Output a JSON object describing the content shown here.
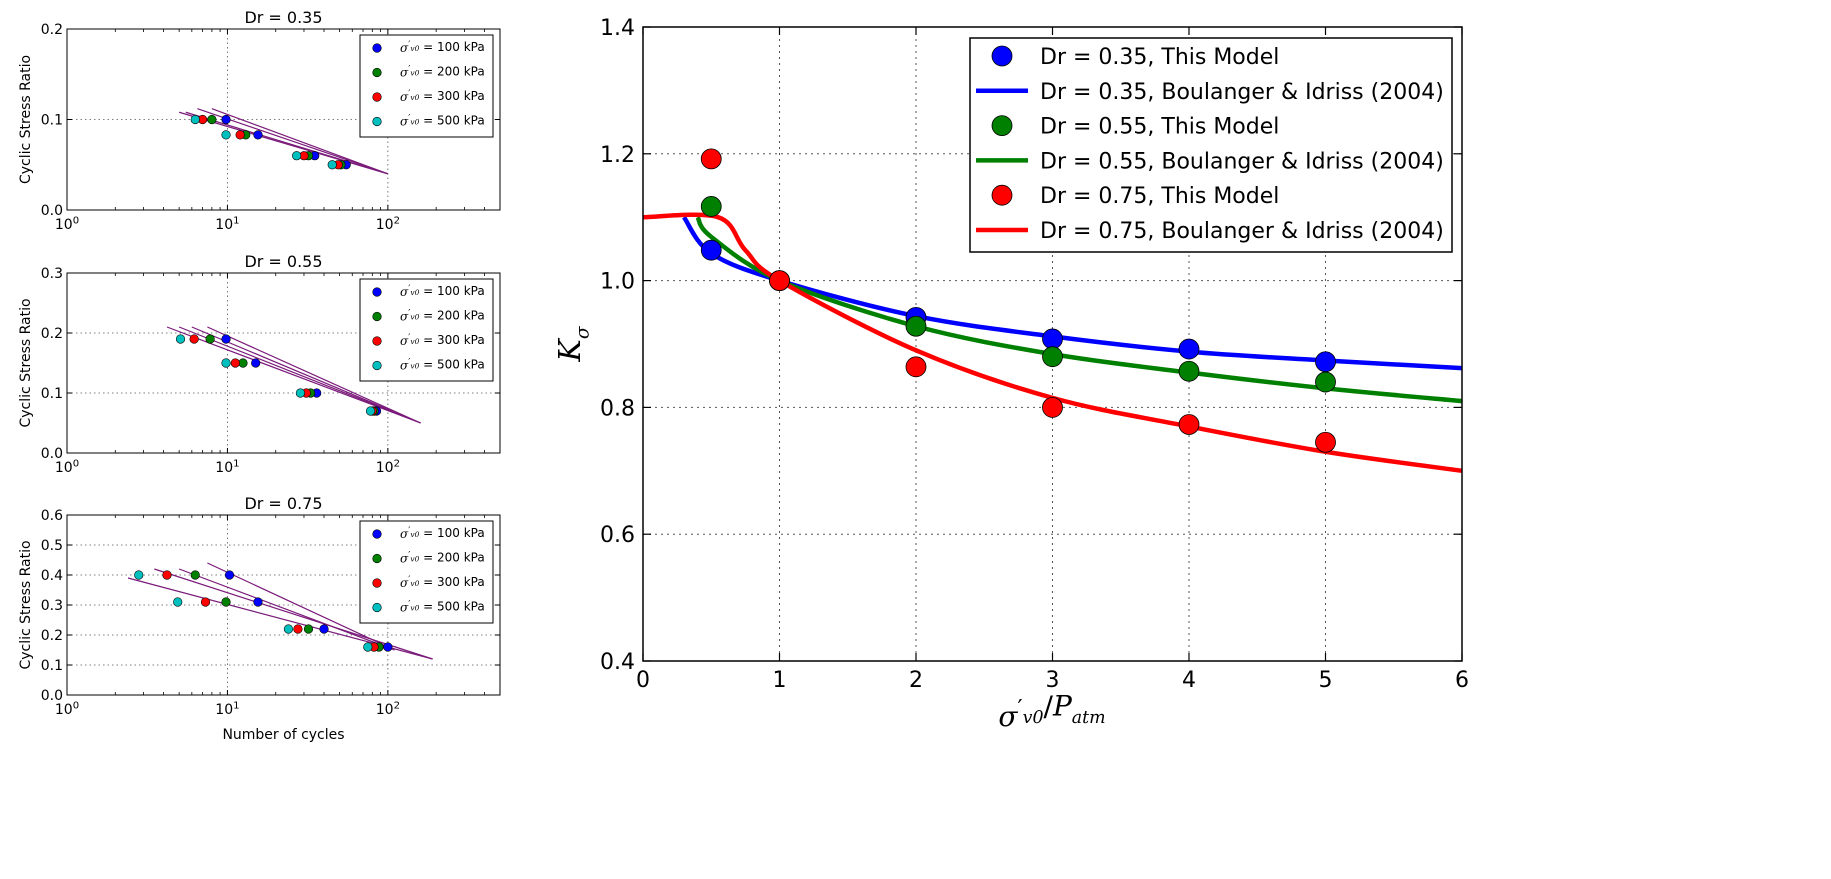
{
  "chart_data": [
    {
      "type": "scatter",
      "title": "Dr = 0.35",
      "ylabel": "Cyclic Stress Ratio",
      "xlabel": "",
      "xscale": "log",
      "xlim": [
        1,
        500
      ],
      "ylim": [
        0,
        0.2
      ],
      "xticks": [
        "10^0",
        "10^1",
        "10^2"
      ],
      "yticks": [
        "0.0",
        "0.1",
        "0.2"
      ],
      "grid": true,
      "legend_position": "top-right",
      "series": [
        {
          "name": "σ'v0 = 100 kPa",
          "color": "#0000ff",
          "x": [
            9.8,
            15.5,
            35,
            55
          ],
          "y": [
            0.1,
            0.083,
            0.06,
            0.05
          ]
        },
        {
          "name": "σ'v0 = 200 kPa",
          "color": "#008000",
          "x": [
            8.0,
            13.0,
            32,
            51
          ],
          "y": [
            0.1,
            0.083,
            0.06,
            0.05
          ]
        },
        {
          "name": "σ'v0 = 300 kPa",
          "color": "#ff0000",
          "x": [
            7.0,
            12.0,
            30,
            49
          ],
          "y": [
            0.1,
            0.083,
            0.06,
            0.05
          ]
        },
        {
          "name": "σ'v0 = 500 kPa",
          "color": "#00bfbf",
          "x": [
            6.3,
            9.8,
            27,
            45
          ],
          "y": [
            0.1,
            0.083,
            0.06,
            0.05
          ]
        }
      ],
      "fit_lines": [
        {
          "x": [
            5,
            100
          ],
          "y": [
            0.108,
            0.04
          ]
        },
        {
          "x": [
            5.5,
            100
          ],
          "y": [
            0.108,
            0.04
          ]
        },
        {
          "x": [
            6.5,
            100
          ],
          "y": [
            0.112,
            0.04
          ]
        },
        {
          "x": [
            8,
            100
          ],
          "y": [
            0.112,
            0.04
          ]
        }
      ]
    },
    {
      "type": "scatter",
      "title": "Dr = 0.55",
      "ylabel": "Cyclic Stress Ratio",
      "xlabel": "",
      "xscale": "log",
      "xlim": [
        1,
        500
      ],
      "ylim": [
        0,
        0.3
      ],
      "xticks": [
        "10^0",
        "10^1",
        "10^2"
      ],
      "yticks": [
        "0.0",
        "0.1",
        "0.2",
        "0.3"
      ],
      "grid": true,
      "legend_position": "top-right",
      "series": [
        {
          "name": "σ'v0 = 100 kPa",
          "color": "#0000ff",
          "x": [
            9.8,
            15,
            36,
            85
          ],
          "y": [
            0.19,
            0.15,
            0.1,
            0.07
          ]
        },
        {
          "name": "σ'v0 = 200 kPa",
          "color": "#008000",
          "x": [
            7.8,
            12.5,
            33,
            82
          ],
          "y": [
            0.19,
            0.15,
            0.1,
            0.07
          ]
        },
        {
          "name": "σ'v0 = 300 kPa",
          "color": "#ff0000",
          "x": [
            6.2,
            11.2,
            31,
            80
          ],
          "y": [
            0.19,
            0.15,
            0.1,
            0.07
          ]
        },
        {
          "name": "σ'v0 = 500 kPa",
          "color": "#00bfbf",
          "x": [
            5.1,
            9.8,
            28.5,
            78
          ],
          "y": [
            0.19,
            0.15,
            0.1,
            0.07
          ]
        }
      ],
      "fit_lines": [
        {
          "x": [
            4.2,
            160
          ],
          "y": [
            0.21,
            0.05
          ]
        },
        {
          "x": [
            5,
            160
          ],
          "y": [
            0.21,
            0.05
          ]
        },
        {
          "x": [
            6,
            160
          ],
          "y": [
            0.21,
            0.05
          ]
        },
        {
          "x": [
            7.5,
            160
          ],
          "y": [
            0.21,
            0.05
          ]
        }
      ]
    },
    {
      "type": "scatter",
      "title": "Dr = 0.75",
      "ylabel": "Cyclic Stress Ratio",
      "xlabel": "Number of cycles",
      "xscale": "log",
      "xlim": [
        1,
        500
      ],
      "ylim": [
        0,
        0.6
      ],
      "xticks": [
        "10^0",
        "10^1",
        "10^2"
      ],
      "yticks": [
        "0.0",
        "0.1",
        "0.2",
        "0.3",
        "0.4",
        "0.5",
        "0.6"
      ],
      "grid": true,
      "legend_position": "top-right",
      "series": [
        {
          "name": "σ'v0 = 100 kPa",
          "color": "#0000ff",
          "x": [
            10.3,
            15.5,
            40,
            100
          ],
          "y": [
            0.4,
            0.31,
            0.22,
            0.16
          ]
        },
        {
          "name": "σ'v0 = 200 kPa",
          "color": "#008000",
          "x": [
            6.3,
            9.8,
            32,
            88
          ],
          "y": [
            0.4,
            0.31,
            0.22,
            0.16
          ]
        },
        {
          "name": "σ'v0 = 300 kPa",
          "color": "#ff0000",
          "x": [
            4.2,
            7.3,
            27.5,
            82
          ],
          "y": [
            0.4,
            0.31,
            0.22,
            0.16
          ]
        },
        {
          "name": "σ'v0 = 500 kPa",
          "color": "#00bfbf",
          "x": [
            2.8,
            4.9,
            24,
            75
          ],
          "y": [
            0.4,
            0.31,
            0.22,
            0.16
          ]
        }
      ],
      "fit_lines": [
        {
          "x": [
            2.4,
            190
          ],
          "y": [
            0.39,
            0.12
          ]
        },
        {
          "x": [
            3.5,
            190
          ],
          "y": [
            0.42,
            0.12
          ]
        },
        {
          "x": [
            5,
            110
          ],
          "y": [
            0.42,
            0.15
          ]
        },
        {
          "x": [
            7.5,
            110
          ],
          "y": [
            0.44,
            0.15
          ]
        }
      ]
    },
    {
      "type": "line",
      "title": "",
      "xlabel": "σ'v0/Patm",
      "ylabel": "Kσ",
      "xlim": [
        0,
        6
      ],
      "ylim": [
        0.4,
        1.4
      ],
      "xticks": [
        "0",
        "1",
        "2",
        "3",
        "4",
        "5",
        "6"
      ],
      "yticks": [
        "0.4",
        "0.6",
        "0.8",
        "1.0",
        "1.2",
        "1.4"
      ],
      "grid": true,
      "legend_position": "top-right",
      "series": [
        {
          "name": "Dr = 0.35, This Model",
          "kind": "points",
          "color": "#0000ff",
          "x": [
            0.5,
            1,
            2,
            3,
            4,
            5
          ],
          "y": [
            1.048,
            1.0,
            0.942,
            0.908,
            0.892,
            0.872
          ]
        },
        {
          "name": "Dr = 0.35, Boulanger & Idriss (2004)",
          "kind": "line",
          "color": "#0000ff",
          "x": [
            0.3,
            0.5,
            1,
            2,
            3,
            4,
            5,
            6
          ],
          "y": [
            1.1,
            1.043,
            1.0,
            0.944,
            0.912,
            0.888,
            0.874,
            0.862
          ]
        },
        {
          "name": "Dr = 0.55, This Model",
          "kind": "points",
          "color": "#008000",
          "x": [
            0.5,
            1,
            2,
            3,
            4,
            5
          ],
          "y": [
            1.117,
            1.0,
            0.928,
            0.88,
            0.857,
            0.84
          ]
        },
        {
          "name": "Dr = 0.55, Boulanger & Idriss (2004)",
          "kind": "line",
          "color": "#008000",
          "x": [
            0.4,
            0.5,
            1,
            2,
            3,
            4,
            5,
            6
          ],
          "y": [
            1.1,
            1.069,
            1.0,
            0.928,
            0.884,
            0.855,
            0.83,
            0.81
          ]
        },
        {
          "name": "Dr = 0.75, This Model",
          "kind": "points",
          "color": "#ff0000",
          "x": [
            0.5,
            1,
            2,
            3,
            4,
            5
          ],
          "y": [
            1.192,
            1.0,
            0.864,
            0.8,
            0.773,
            0.745
          ]
        },
        {
          "name": "Dr = 0.75, Boulanger & Idriss (2004)",
          "kind": "line",
          "color": "#ff0000",
          "x": [
            0,
            0.55,
            0.75,
            1,
            2,
            3,
            4,
            5,
            6
          ],
          "y": [
            1.1,
            1.1,
            1.048,
            1.0,
            0.89,
            0.815,
            0.77,
            0.73,
            0.7
          ]
        }
      ]
    }
  ]
}
